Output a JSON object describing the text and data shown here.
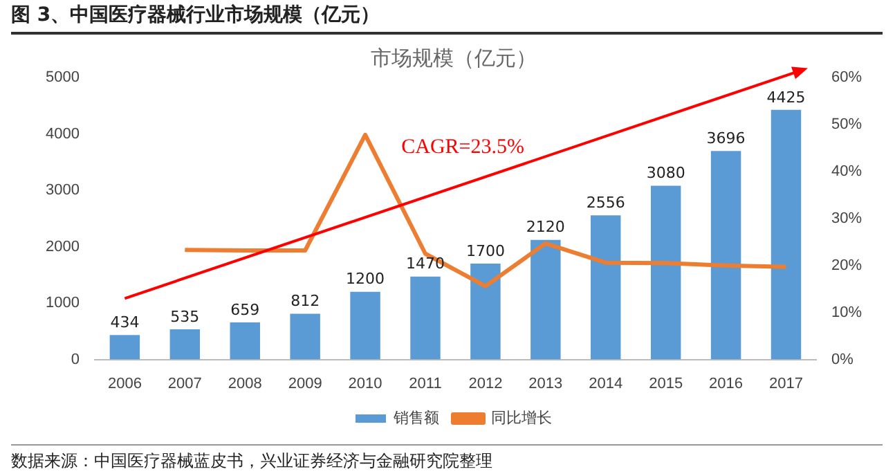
{
  "chart_data": {
    "type": "bar",
    "title": "图 3、中国医疗器械行业市场规模（亿元）",
    "subtitle": "市场规模（亿元）",
    "categories": [
      "2006",
      "2007",
      "2008",
      "2009",
      "2010",
      "2011",
      "2012",
      "2013",
      "2014",
      "2015",
      "2016",
      "2017"
    ],
    "series": [
      {
        "name": "销售额",
        "color": "#5b9bd5",
        "values": [
          434,
          535,
          659,
          812,
          1200,
          1470,
          1700,
          2120,
          2556,
          3080,
          3696,
          4425
        ],
        "value_labels": [
          "434",
          "535",
          "659",
          "812",
          "1200",
          "1470",
          "1700",
          "2120",
          "2556",
          "3080",
          "3696",
          "4425"
        ]
      },
      {
        "name": "同比增长",
        "type": "line",
        "axis": "y2",
        "color": "#ed7d31",
        "values": [
          null,
          23.3,
          23.2,
          23.2,
          47.8,
          22.5,
          15.6,
          24.7,
          20.6,
          20.5,
          20.0,
          19.7
        ]
      }
    ],
    "ylim": [
      0,
      5000
    ],
    "yticks": [
      0,
      1000,
      2000,
      3000,
      4000,
      5000
    ],
    "y2lim": [
      0,
      60
    ],
    "y2ticks": [
      {
        "value": 0,
        "label": "0%"
      },
      {
        "value": 10,
        "label": "10%"
      },
      {
        "value": 20,
        "label": "20%"
      },
      {
        "value": 30,
        "label": "30%"
      },
      {
        "value": 40,
        "label": "40%"
      },
      {
        "value": 50,
        "label": "50%"
      },
      {
        "value": 60,
        "label": "60%"
      }
    ],
    "grid": false,
    "legend": "bottom",
    "marker": "none",
    "annotations": [
      "CAGR=23.5%",
      "数据来源：中国医疗器械蓝皮书，兴业证券经济与金融研究院整理"
    ]
  }
}
